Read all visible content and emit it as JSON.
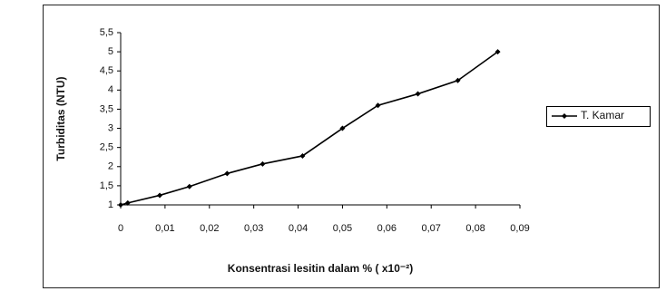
{
  "chart_data": {
    "type": "line",
    "ylabel": "Turbiditas (NTU)",
    "xlabel": "Konsentrasi lesitin dalam % ( x10⁻²)",
    "x": [
      0,
      0.0016,
      0.0088,
      0.0155,
      0.024,
      0.032,
      0.041,
      0.05,
      0.058,
      0.067,
      0.076,
      0.085
    ],
    "series": [
      {
        "name": "T. Kamar",
        "color": "#000000",
        "values": [
          1.0,
          1.05,
          1.25,
          1.48,
          1.82,
          2.07,
          2.28,
          3.0,
          3.6,
          3.9,
          4.25,
          5.0
        ]
      }
    ],
    "xlim": [
      0,
      0.09
    ],
    "xticks": [
      0,
      {
        "value": 0.01,
        "label": "0,01"
      },
      {
        "value": 0.02,
        "label": "0,02"
      },
      {
        "value": 0.03,
        "label": "0,03"
      },
      {
        "value": 0.04,
        "label": "0,04"
      },
      {
        "value": 0.05,
        "label": "0,05"
      },
      {
        "value": 0.06,
        "label": "0,06"
      },
      {
        "value": 0.07,
        "label": "0,07"
      },
      {
        "value": 0.08,
        "label": "0,08"
      },
      {
        "value": 0.09,
        "label": "0,09"
      }
    ],
    "ylim": [
      1,
      5.5
    ],
    "yticks": [
      1,
      {
        "value": 1.5,
        "label": "1,5"
      },
      2,
      {
        "value": 2.5,
        "label": "2,5"
      },
      3,
      {
        "value": 3.5,
        "label": "3,5"
      },
      4,
      {
        "value": 4.5,
        "label": "4,5"
      },
      5,
      {
        "value": 5.5,
        "label": "5,5"
      }
    ],
    "legend": "right"
  }
}
